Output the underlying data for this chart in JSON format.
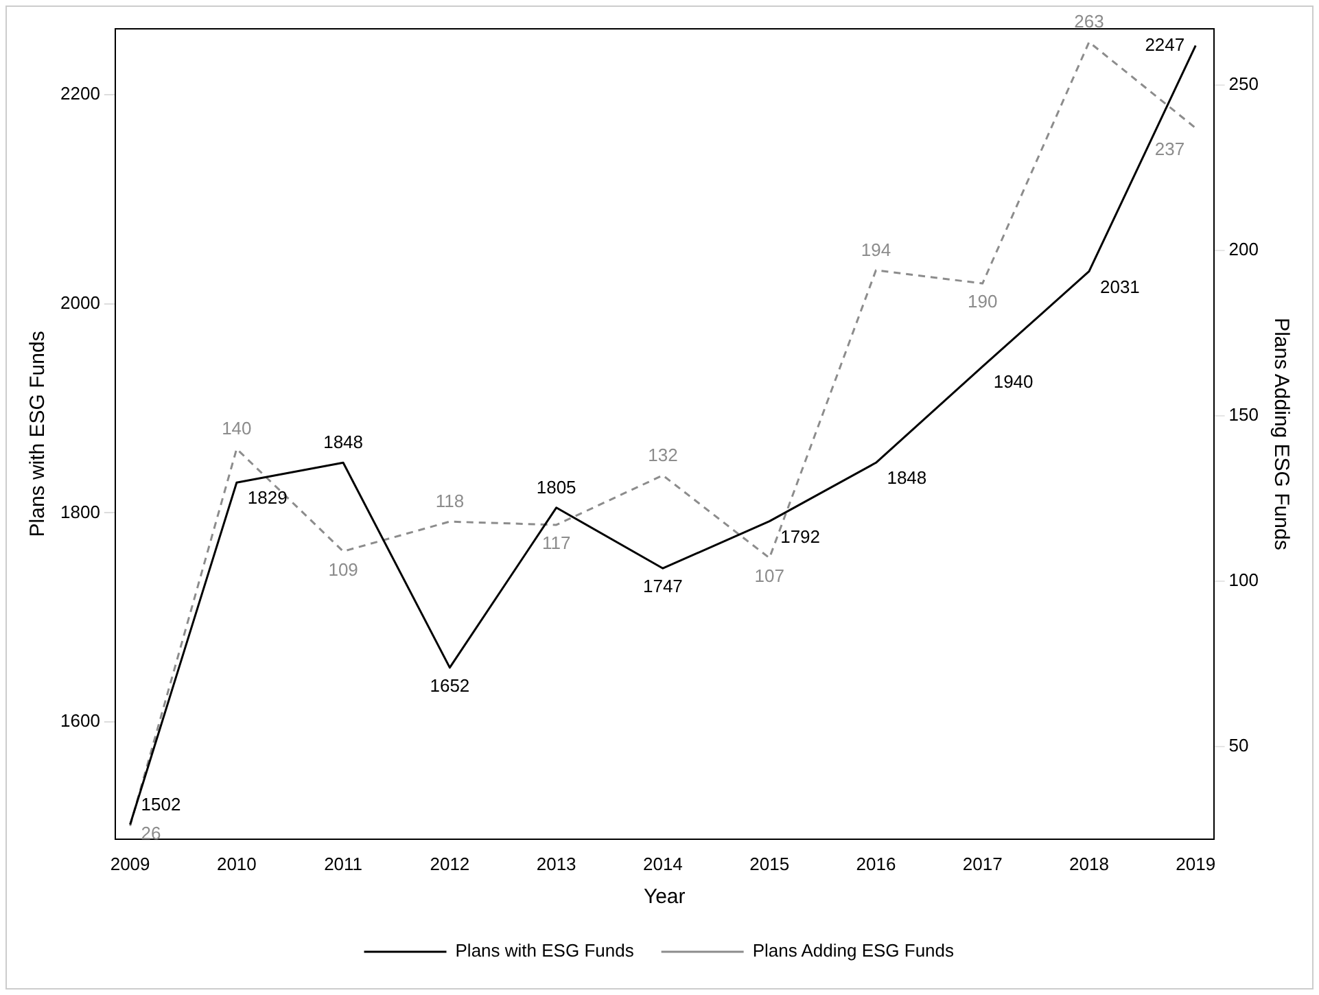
{
  "chart_data": {
    "type": "line",
    "xlabel": "Year",
    "ylabel": "Plans with ESG Funds",
    "y2label": "Plans Adding ESG Funds",
    "x": [
      2009,
      2010,
      2011,
      2012,
      2013,
      2014,
      2015,
      2016,
      2017,
      2018,
      2019
    ],
    "xlim": [
      2008.86,
      2019.17
    ],
    "xticks": [
      2009,
      2010,
      2011,
      2012,
      2013,
      2014,
      2015,
      2016,
      2017,
      2018,
      2019
    ],
    "ylim": [
      1488,
      2263
    ],
    "yticks": [
      1600,
      1800,
      2000,
      2200
    ],
    "y2lim": [
      22,
      267
    ],
    "y2ticks": [
      50,
      100,
      150,
      200,
      250
    ],
    "series": [
      {
        "name": "Plans with ESG Funds",
        "color": "#000000",
        "line_style": "solid",
        "values": [
          1502,
          1829,
          1848,
          1652,
          1805,
          1747,
          1792,
          1848,
          1940,
          2031,
          2247
        ]
      },
      {
        "name": "Plans Adding ESG Funds",
        "color": "#8c8c8c",
        "line_style": "dashed",
        "axis": "y2",
        "values": [
          26,
          140,
          109,
          118,
          117,
          132,
          107,
          194,
          190,
          263,
          237
        ]
      }
    ],
    "data_labels": true,
    "grid": false,
    "marker": "none",
    "legend": "bottom"
  }
}
